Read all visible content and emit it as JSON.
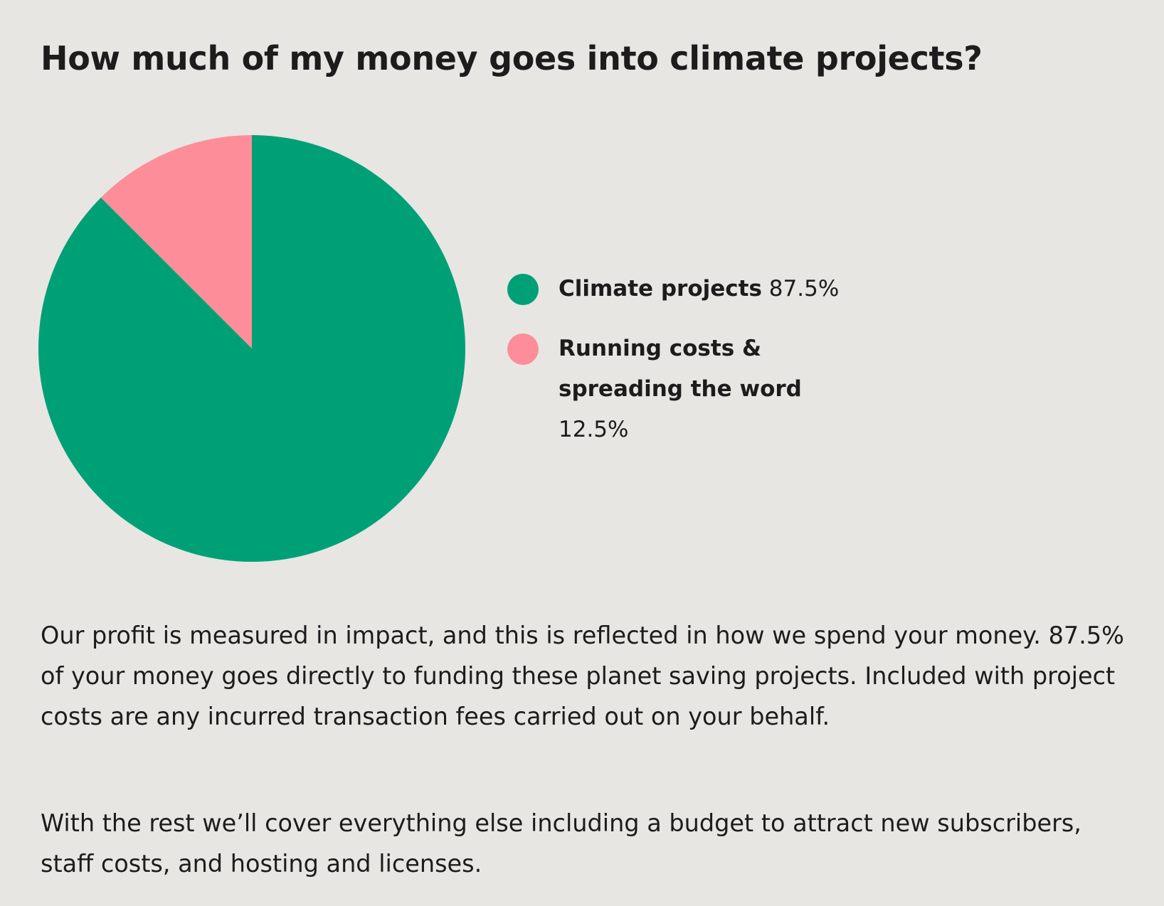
{
  "title": "How much of my money goes into climate projects?",
  "chart_data": {
    "type": "pie",
    "slices": [
      {
        "label": "Climate projects",
        "value": 87.5,
        "display": "87.5%",
        "color": "#00a077"
      },
      {
        "label": "Running costs & spreading the word",
        "value": 12.5,
        "display": "12.5%",
        "color": "#fe8d9a"
      }
    ],
    "start_angle": "12 o'clock",
    "direction": "clockwise",
    "legend_position": "right"
  },
  "paragraphs": [
    "Our profit is measured in impact, and this is reflected in how we spend your money. 87.5% of your money goes directly to funding these planet saving projects. Included with project costs are any incurred transaction fees carried out on your behalf.",
    "With the rest we’ll cover everything else including a budget to attract new subscribers, staff costs, and hosting and licenses."
  ]
}
